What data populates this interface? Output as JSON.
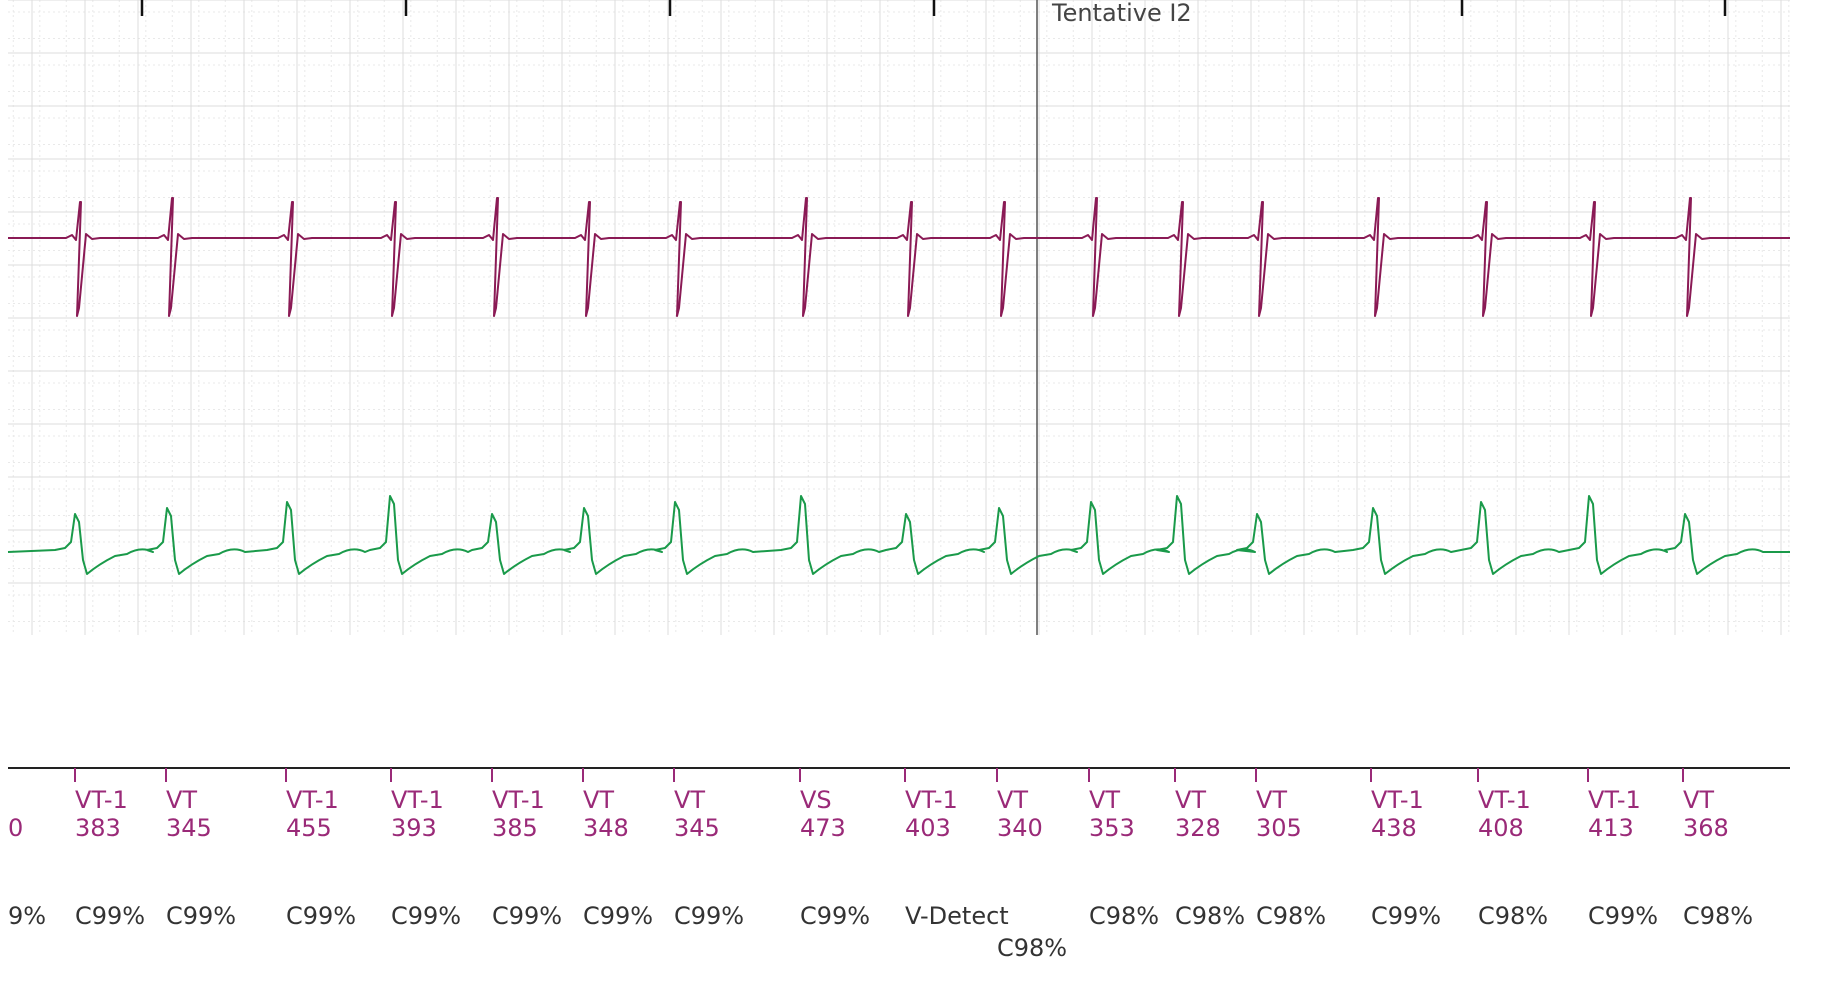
{
  "colors": {
    "background": "#ffffff",
    "grid_major": "#dcdcdc",
    "grid_minor": "#e9e9e9",
    "channel_1_trace": "#8a1a55",
    "channel_2_trace": "#1a9a4a",
    "marker_text": "#9a2a78",
    "confidence_text": "#333333",
    "cursor_line": "#555555",
    "marker_axis": "#222222"
  },
  "cursor": {
    "label": "Tentative I2"
  },
  "events": [
    {
      "marker": "",
      "interval": "0",
      "confidence": "9%"
    },
    {
      "marker": "VT-1",
      "interval": "383",
      "confidence": "C99%"
    },
    {
      "marker": "VT",
      "interval": "345",
      "confidence": "C99%"
    },
    {
      "marker": "VT-1",
      "interval": "455",
      "confidence": "C99%"
    },
    {
      "marker": "VT-1",
      "interval": "393",
      "confidence": "C99%"
    },
    {
      "marker": "VT-1",
      "interval": "385",
      "confidence": "C99%"
    },
    {
      "marker": "VT",
      "interval": "348",
      "confidence": "C99%"
    },
    {
      "marker": "VT",
      "interval": "345",
      "confidence": "C99%"
    },
    {
      "marker": "VS",
      "interval": "473",
      "confidence": "C99%"
    },
    {
      "marker": "VT-1",
      "interval": "403",
      "confidence": "V-Detect"
    },
    {
      "marker": "VT",
      "interval": "340",
      "confidence": "C98%"
    },
    {
      "marker": "VT",
      "interval": "353",
      "confidence": "C98%"
    },
    {
      "marker": "VT",
      "interval": "328",
      "confidence": "C98%"
    },
    {
      "marker": "VT",
      "interval": "305",
      "confidence": "C98%"
    },
    {
      "marker": "VT-1",
      "interval": "438",
      "confidence": "C99%"
    },
    {
      "marker": "VT-1",
      "interval": "408",
      "confidence": "C98%"
    },
    {
      "marker": "VT-1",
      "interval": "413",
      "confidence": "C99%"
    },
    {
      "marker": "VT",
      "interval": "368",
      "confidence": "C98%"
    }
  ]
}
